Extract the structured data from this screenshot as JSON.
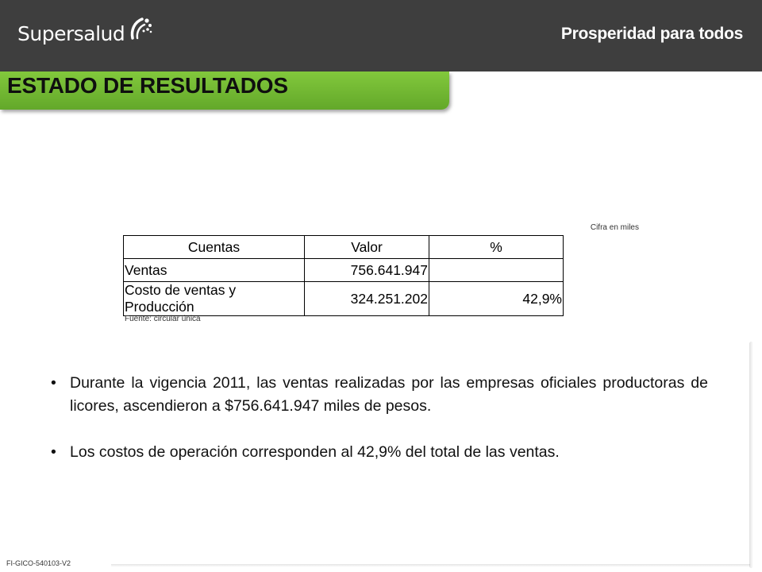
{
  "header": {
    "logo_text": "Supersalud",
    "slogan": "Prosperidad para todos"
  },
  "title": "ESTADO DE RESULTADOS",
  "table": {
    "note": "Cifra en miles",
    "headers": [
      "Cuentas",
      "Valor",
      "%"
    ],
    "rows": [
      [
        "Ventas",
        "756.641.947",
        ""
      ],
      [
        "Costo de ventas y Producción",
        "324.251.202",
        "42,9%"
      ]
    ],
    "source": "Fuente: circular única"
  },
  "bullets": [
    "Durante la vigencia 2011, las ventas realizadas por las empresas oficiales productoras de licores, ascendieron a $756.641.947 miles de pesos.",
    "Los costos de operación corresponden al 42,9% del total de las ventas."
  ],
  "bullet_symbol": "•",
  "footer_code": "FI-GICO-540103-V2",
  "colors": {
    "header_bg": "#3e3e3e",
    "title_bar": "#78be35"
  }
}
